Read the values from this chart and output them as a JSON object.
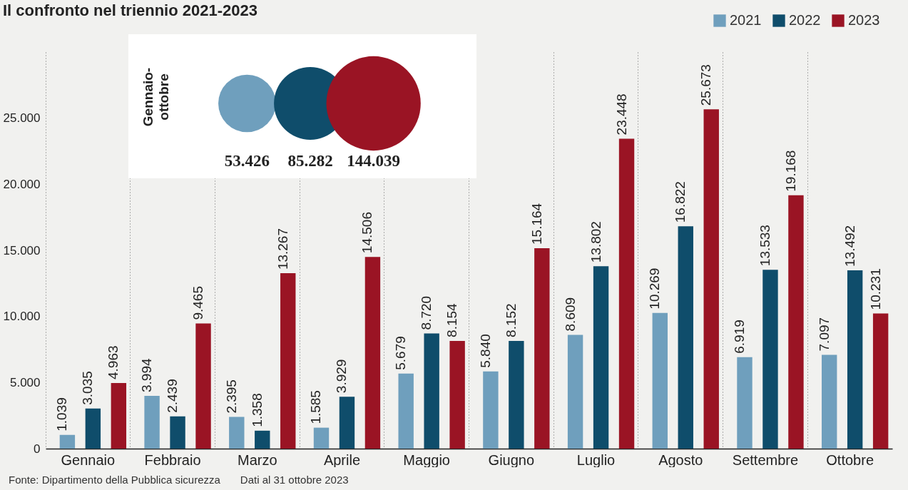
{
  "chart_data": [
    {
      "type": "bar",
      "title": "Il confronto nel triennio 2021-2023",
      "categories": [
        "Gennaio",
        "Febbraio",
        "Marzo",
        "Aprile",
        "Maggio",
        "Giugno",
        "Luglio",
        "Agosto",
        "Settembre",
        "Ottobre"
      ],
      "series": [
        {
          "name": "2021",
          "color": "#6f9fbd",
          "values": [
            1039,
            3994,
            2395,
            1585,
            5679,
            5840,
            8609,
            10269,
            6919,
            7097
          ],
          "value_labels": [
            "1.039",
            "3.994",
            "2.395",
            "1.585",
            "5.679",
            "5.840",
            "8.609",
            "10.269",
            "6.919",
            "7.097"
          ]
        },
        {
          "name": "2022",
          "color": "#0f4d6b",
          "values": [
            3035,
            2439,
            1358,
            3929,
            8720,
            8152,
            13802,
            16822,
            13533,
            13492
          ],
          "value_labels": [
            "3.035",
            "2.439",
            "1.358",
            "3.929",
            "8.720",
            "8.152",
            "13.802",
            "16.822",
            "13.533",
            "13.492"
          ]
        },
        {
          "name": "2023",
          "color": "#9a1424",
          "values": [
            4963,
            9465,
            13267,
            14506,
            8154,
            15164,
            23448,
            25673,
            19168,
            10231
          ],
          "value_labels": [
            "4.963",
            "9.465",
            "13.267",
            "14.506",
            "8.154",
            "15.164",
            "23.448",
            "25.673",
            "19.168",
            "10.231"
          ]
        }
      ],
      "ylim": [
        0,
        30000
      ],
      "yticks": [
        0,
        {
          "value": 5000,
          "label": "5.000"
        },
        {
          "value": 10000,
          "label": "10.000"
        },
        {
          "value": 15000,
          "label": "15.000"
        },
        {
          "value": 20000,
          "label": "20.000"
        },
        {
          "value": 25000,
          "label": "25.000"
        }
      ],
      "grid": "x",
      "legend": "top right",
      "annotations": [
        "Fonte: Dipartimento della Pubblica sicurezza",
        "Dati al 31 ottobre 2023"
      ]
    },
    {
      "type": "other",
      "ylabel": "Gennaio-ottobre",
      "categories": [
        null,
        null,
        null
      ],
      "values": [
        53426,
        85282,
        144039
      ],
      "value_labels": [
        "53.426",
        "85.282",
        "144.039"
      ],
      "colors": [
        "#6f9fbd",
        "#0f4d6b",
        "#9a1424"
      ]
    }
  ]
}
